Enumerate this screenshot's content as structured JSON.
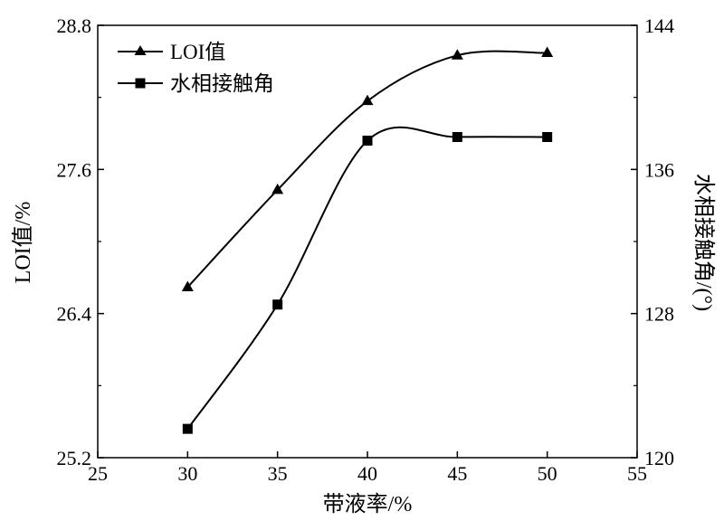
{
  "chart_data": {
    "type": "line",
    "x": [
      30,
      35,
      40,
      45,
      50
    ],
    "xlim": [
      25,
      55
    ],
    "xticks": [
      "25",
      "30",
      "35",
      "40",
      "45",
      "50",
      "55"
    ],
    "xlabel": "带液率/%",
    "y_left": {
      "label": "LOI值/%",
      "lim": [
        25.2,
        28.8
      ],
      "ticks": [
        "25.2",
        "26.4",
        "27.6",
        "28.8"
      ]
    },
    "y_right": {
      "label": "水相接触角/(°)",
      "lim": [
        120,
        144
      ],
      "ticks": [
        "120",
        "128",
        "136",
        "144"
      ]
    },
    "series": [
      {
        "name": "LOI值",
        "axis": "left",
        "marker": "triangle",
        "values": [
          26.62,
          27.43,
          28.17,
          28.55,
          28.57
        ]
      },
      {
        "name": "水相接触角",
        "axis": "right",
        "marker": "square",
        "values": [
          121.6,
          128.5,
          137.6,
          137.8,
          137.8
        ]
      }
    ],
    "legend_position": "top-left",
    "grid": false
  }
}
